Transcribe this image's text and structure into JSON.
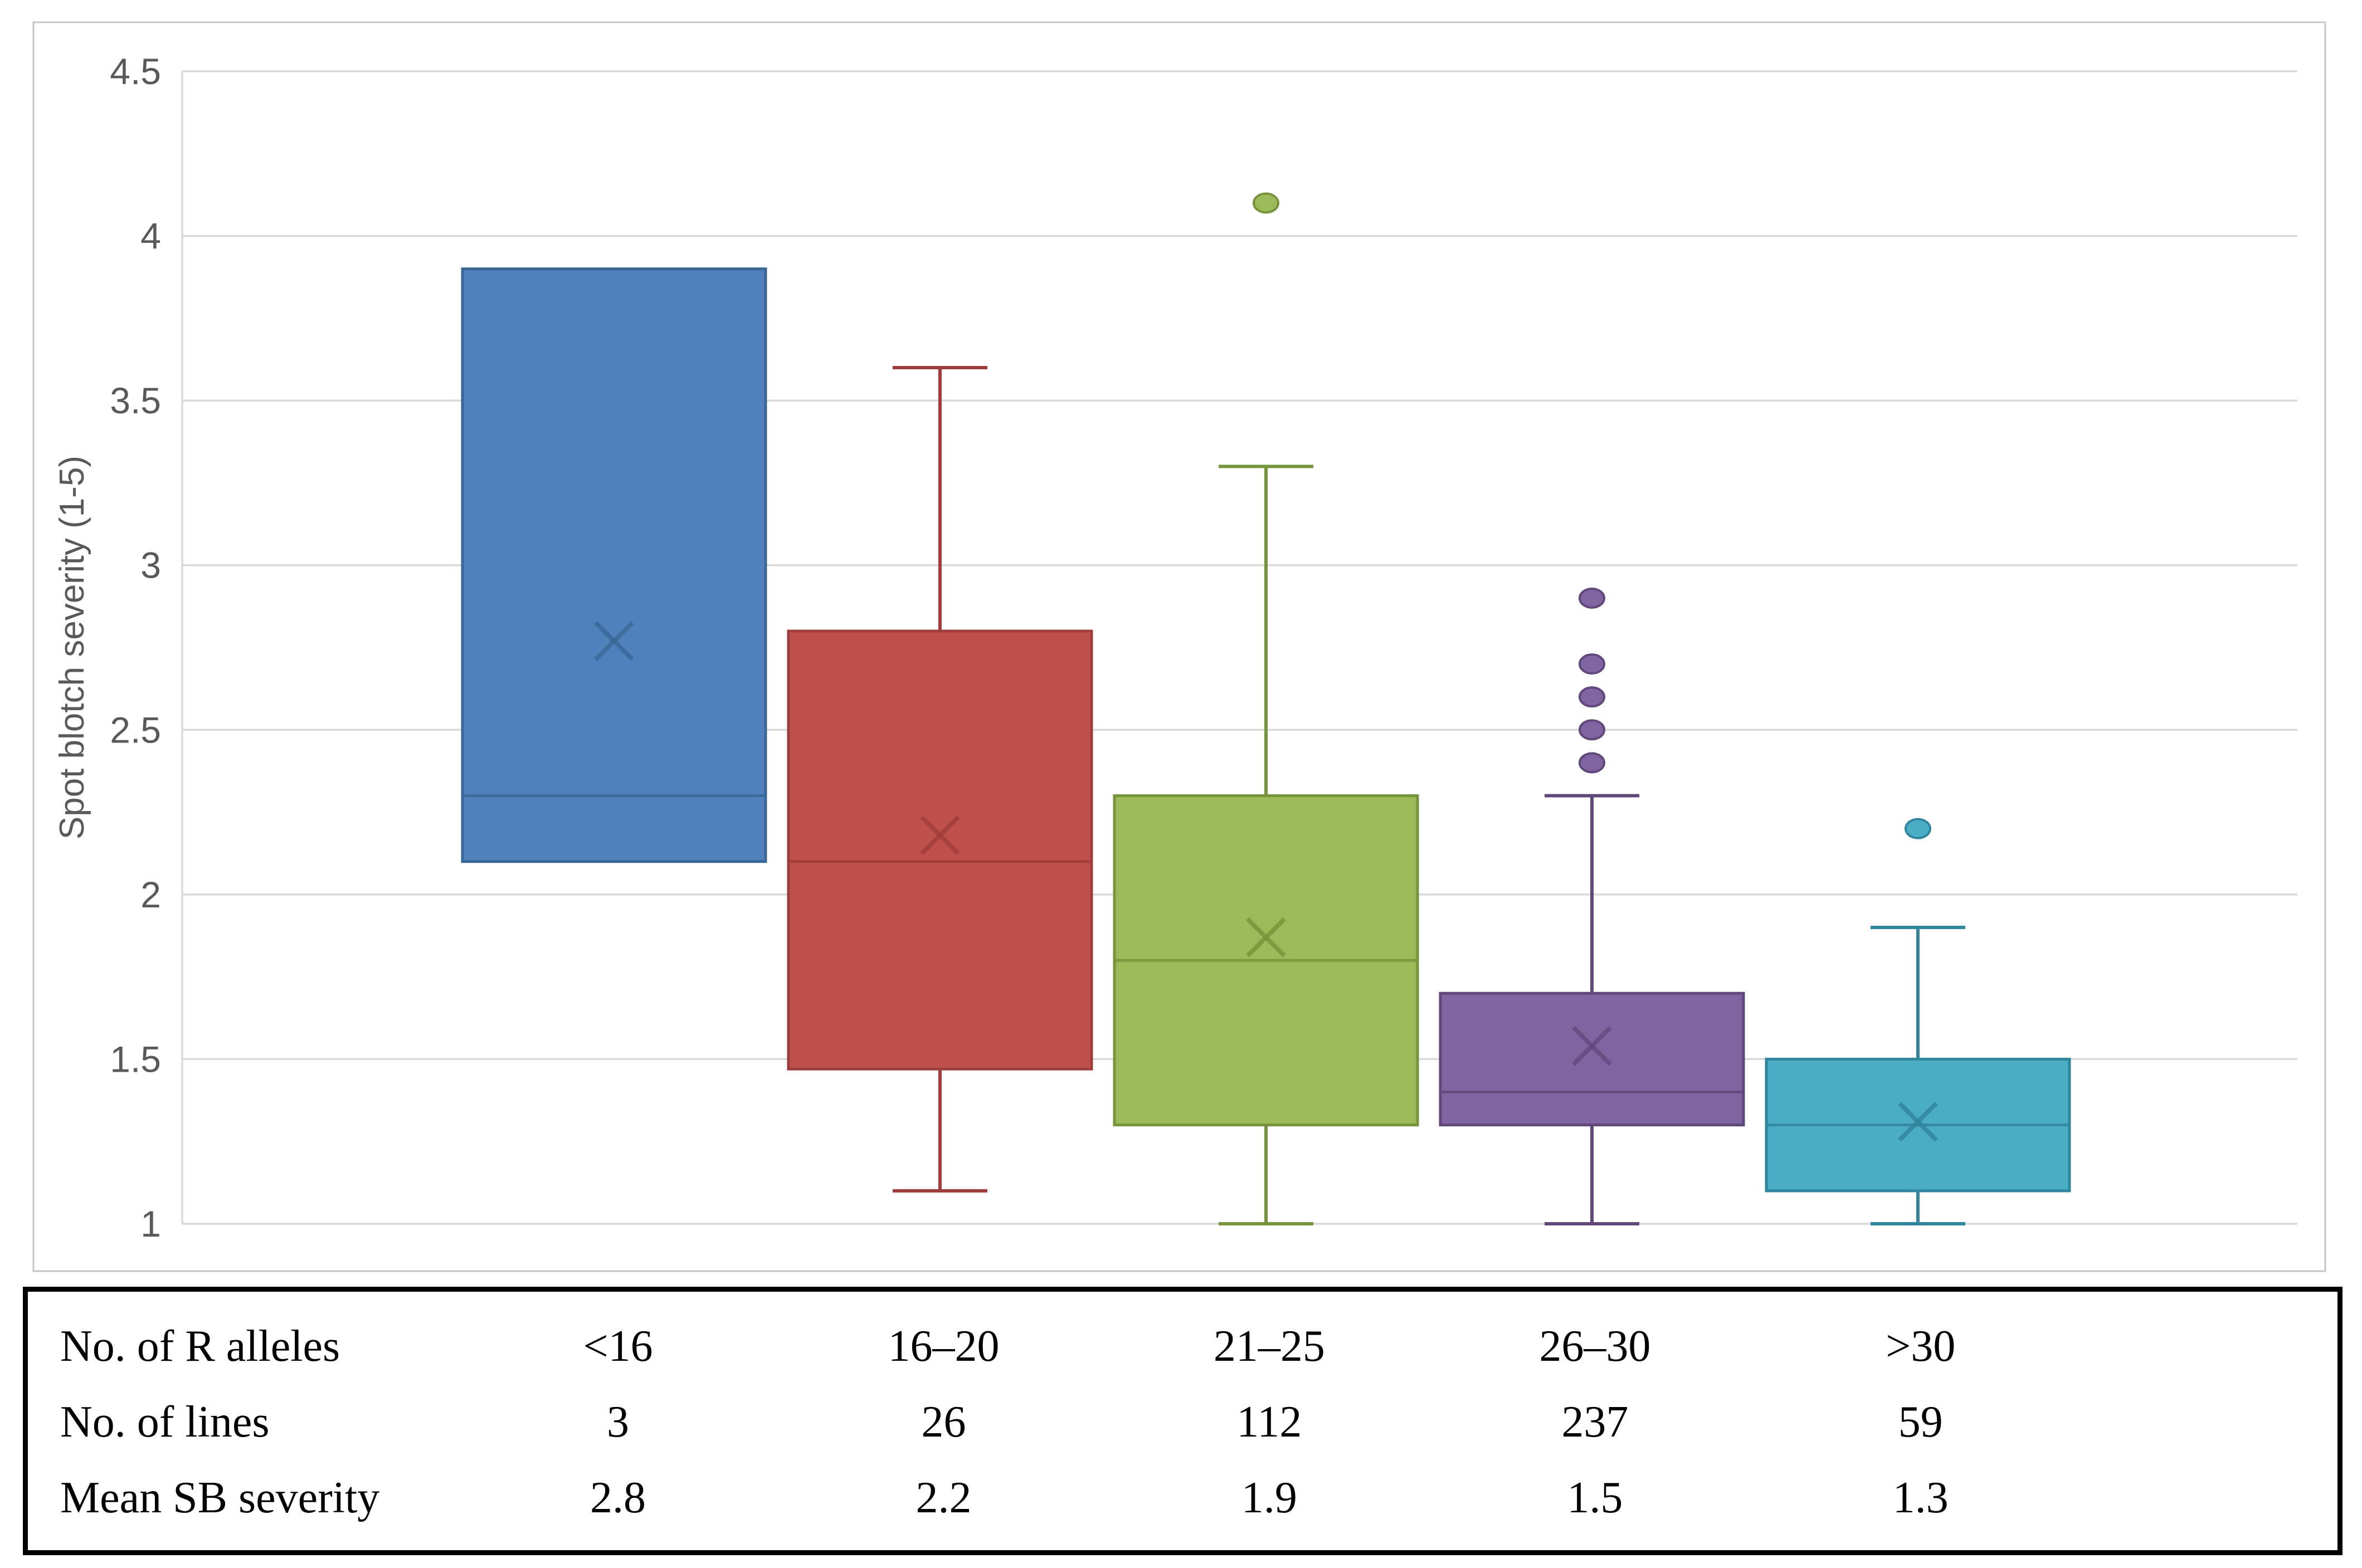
{
  "chart_data": {
    "type": "boxplot",
    "title": "",
    "ylabel": "Spot blotch severity (1-5)",
    "ylim": [
      1,
      4.5
    ],
    "yticks": [
      "4.5",
      "4",
      "3.5",
      "3",
      "2.5",
      "2",
      "1.5",
      "1"
    ],
    "ytick_values": [
      4.5,
      4,
      3.5,
      3,
      2.5,
      2,
      1.5,
      1
    ],
    "grid": "horizontal",
    "legend": "none",
    "categories": [
      "<16",
      "16–20",
      "21–25",
      "26–30",
      ">30"
    ],
    "series": [
      {
        "name": "<16",
        "fill": "#4F81BD",
        "edge": "#3A6796",
        "whisker_low": null,
        "q1": 2.1,
        "median": 2.3,
        "q3": 3.9,
        "whisker_high": null,
        "mean": 2.77,
        "outliers": []
      },
      {
        "name": "16–20",
        "fill": "#C0504D",
        "edge": "#9E3D3B",
        "whisker_low": 1.1,
        "q1": 1.47,
        "median": 2.1,
        "q3": 2.8,
        "whisker_high": 3.6,
        "mean": 2.18,
        "outliers": []
      },
      {
        "name": "21–25",
        "fill": "#9BBB59",
        "edge": "#77933C",
        "whisker_low": 1.0,
        "q1": 1.3,
        "median": 1.8,
        "q3": 2.3,
        "whisker_high": 3.3,
        "mean": 1.87,
        "outliers": [
          4.1
        ]
      },
      {
        "name": "26–30",
        "fill": "#8064A2",
        "edge": "#61487B",
        "whisker_low": 1.0,
        "q1": 1.3,
        "median": 1.4,
        "q3": 1.7,
        "whisker_high": 2.3,
        "mean": 1.54,
        "outliers": [
          2.4,
          2.5,
          2.6,
          2.7,
          2.9
        ]
      },
      {
        "name": ">30",
        "fill": "#4BACC6",
        "edge": "#31859C",
        "whisker_low": 1.0,
        "q1": 1.1,
        "median": 1.3,
        "q3": 1.5,
        "whisker_high": 1.9,
        "mean": 1.31,
        "outliers": [
          2.2
        ]
      }
    ],
    "colors": {
      "gridline": "#D9D9D9",
      "chart_border": "#C6C6C6",
      "axis_text": "#595959"
    }
  },
  "table": {
    "rows": [
      {
        "label": "No. of R alleles",
        "values": [
          "<16",
          "16–20",
          "21–25",
          "26–30",
          ">30"
        ]
      },
      {
        "label": "No. of lines",
        "values": [
          "3",
          "26",
          "112",
          "237",
          "59"
        ]
      },
      {
        "label": "Mean SB severity",
        "values": [
          "2.8",
          "2.2",
          "1.9",
          "1.5",
          "1.3"
        ]
      }
    ]
  }
}
